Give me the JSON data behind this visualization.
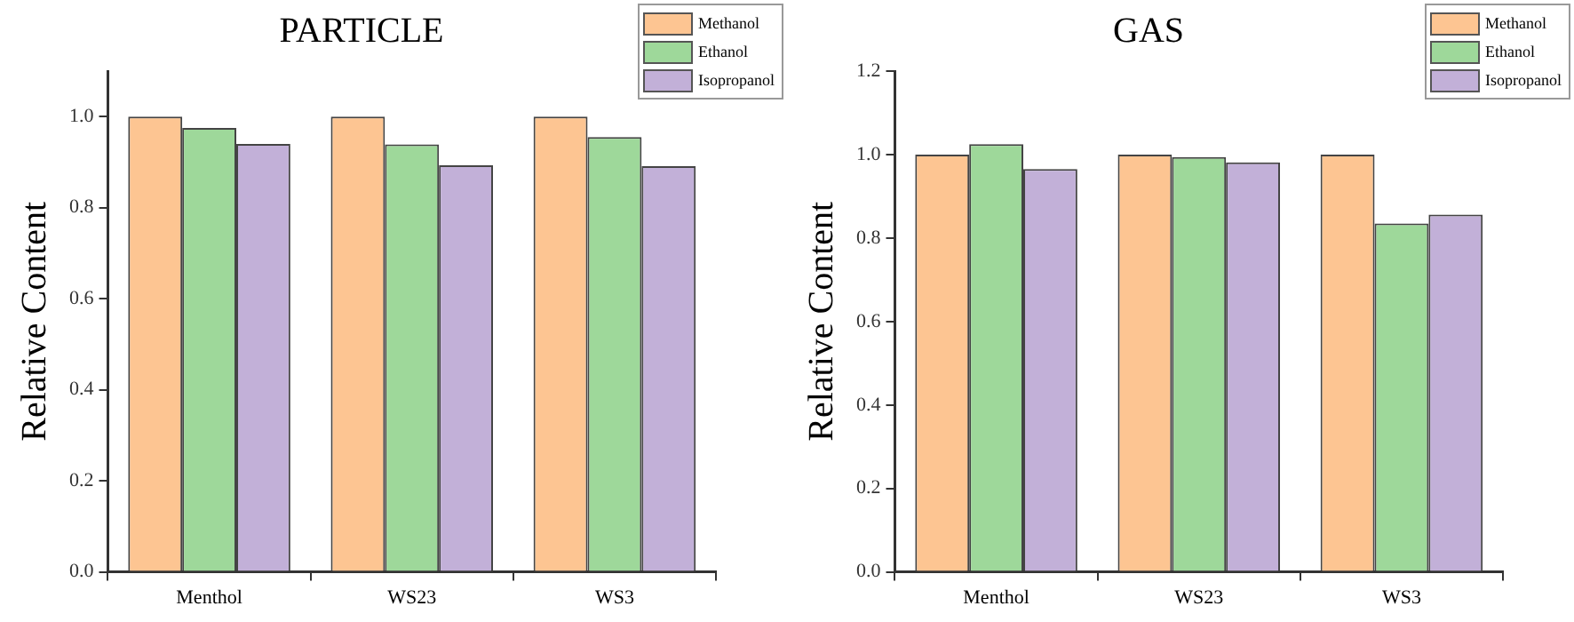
{
  "chart_data": [
    {
      "type": "bar",
      "title": "PARTICLE",
      "ylabel": "Relative Content",
      "categories": [
        "Menthol",
        "WS23",
        "WS3"
      ],
      "series": [
        {
          "name": "Methanol",
          "color": "#fdc592",
          "values": [
            1.0,
            1.0,
            1.0
          ]
        },
        {
          "name": "Ethanol",
          "color": "#9ed89a",
          "values": [
            0.975,
            0.939,
            0.955
          ]
        },
        {
          "name": "Isopropanol",
          "color": "#c2b0d8",
          "values": [
            0.94,
            0.893,
            0.891
          ]
        }
      ],
      "ylim": [
        0,
        1.1
      ],
      "yticks": [
        {
          "value": 0,
          "label": "0.0"
        },
        {
          "value": 0.2,
          "label": "0.2"
        },
        {
          "value": 0.4,
          "label": "0.4"
        },
        {
          "value": 0.6,
          "label": "0.6"
        },
        {
          "value": 0.8,
          "label": "0.8"
        },
        {
          "value": 1,
          "label": "1.0"
        }
      ],
      "grid": false,
      "legend": "top right"
    },
    {
      "type": "bar",
      "title": "GAS",
      "ylabel": "Relative Content",
      "categories": [
        "Menthol",
        "WS23",
        "WS3"
      ],
      "series": [
        {
          "name": "Methanol",
          "color": "#fdc592",
          "values": [
            1.0,
            1.0,
            1.0
          ]
        },
        {
          "name": "Ethanol",
          "color": "#9ed89a",
          "values": [
            1.025,
            0.994,
            0.835
          ]
        },
        {
          "name": "Isopropanol",
          "color": "#c2b0d8",
          "values": [
            0.965,
            0.981,
            0.856
          ]
        }
      ],
      "ylim": [
        0,
        1.2
      ],
      "yticks": [
        {
          "value": 0,
          "label": "0.0"
        },
        {
          "value": 0.2,
          "label": "0.2"
        },
        {
          "value": 0.4,
          "label": "0.4"
        },
        {
          "value": 0.6,
          "label": "0.6"
        },
        {
          "value": 0.8,
          "label": "0.8"
        },
        {
          "value": 1,
          "label": "1.0"
        },
        {
          "value": 1.2,
          "label": "1.2"
        }
      ],
      "grid": false,
      "legend": "top right"
    }
  ]
}
